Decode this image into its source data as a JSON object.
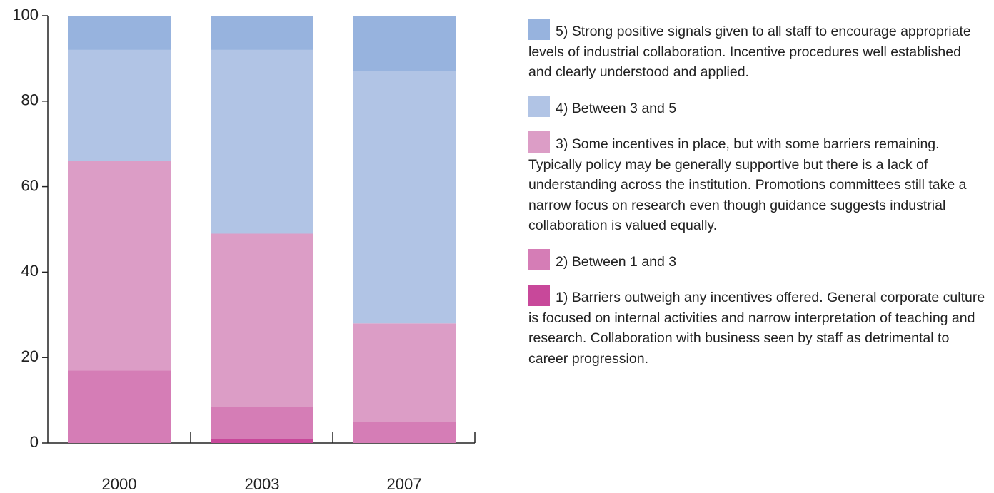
{
  "chart_data": {
    "type": "stacked_bar",
    "categories": [
      "2000",
      "2003",
      "2007"
    ],
    "series": [
      {
        "name": "1) Barriers outweigh any incentives offered. General corporate culture is focused on internal activities and narrow interpretation of teaching and research. Collaboration with business seen by staff as detrimental to career progression.",
        "color": "#c8489a",
        "values": [
          0,
          1,
          0
        ]
      },
      {
        "name": "2) Between 1 and 3",
        "color": "#d57db6",
        "values": [
          17,
          7.5,
          5
        ]
      },
      {
        "name": "3) Some incentives in place, but with some barriers remaining. Typically policy may be generally supportive but there is a lack of understanding across the institution. Promotions committees still take a narrow focus on research even though guidance suggests industrial collaboration is valued equally.",
        "color": "#dc9dc6",
        "values": [
          49,
          40.5,
          23
        ]
      },
      {
        "name": "4) Between 3 and 5",
        "color": "#b1c4e5",
        "values": [
          26,
          43,
          59
        ]
      },
      {
        "name": "5) Strong positive signals given to all staff to encourage appropriate levels of industrial collaboration. Incentive procedures well established and clearly understood and applied.",
        "color": "#97b3de",
        "values": [
          8,
          8,
          13
        ]
      }
    ],
    "ylim": [
      0,
      100
    ],
    "yticks": [
      0,
      20,
      40,
      60,
      80,
      100
    ],
    "grid": false,
    "legend": "right"
  }
}
